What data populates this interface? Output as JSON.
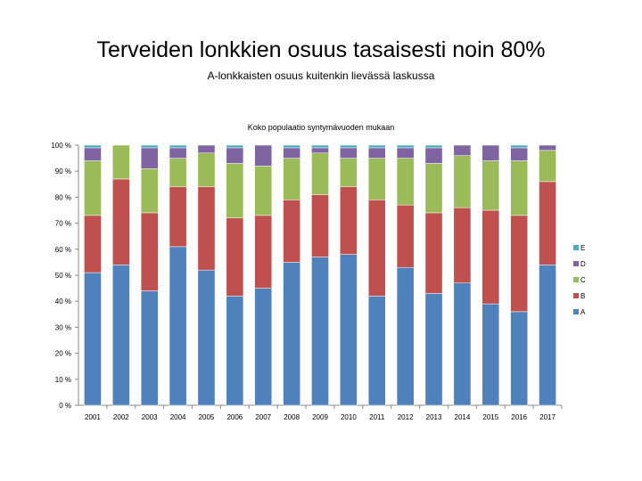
{
  "slide": {
    "title": "Terveiden lonkkien osuus tasaisesti noin 80%",
    "subtitle": "A-lonkkaisten osuus kuitenkin lievässä laskussa"
  },
  "chart_data": {
    "type": "bar",
    "stacked": true,
    "percent": true,
    "title": "Koko populaatio syntymävuoden mukaan",
    "xlabel": "",
    "ylabel": "",
    "ylim": [
      0,
      100
    ],
    "y_ticks": [
      "0 %",
      "10 %",
      "20 %",
      "30 %",
      "40 %",
      "50 %",
      "60 %",
      "70 %",
      "80 %",
      "90 %",
      "100 %"
    ],
    "categories": [
      "2001",
      "2002",
      "2003",
      "2004",
      "2005",
      "2006",
      "2007",
      "2008",
      "2009",
      "2010",
      "2011",
      "2012",
      "2013",
      "2014",
      "2015",
      "2016",
      "2017"
    ],
    "series": [
      {
        "name": "A",
        "color": "#4F81BD",
        "values": [
          51,
          54,
          44,
          61,
          52,
          42,
          45,
          55,
          57,
          58,
          42,
          53,
          43,
          47,
          39,
          36,
          54
        ]
      },
      {
        "name": "B",
        "color": "#C0504D",
        "values": [
          22,
          33,
          30,
          23,
          32,
          30,
          28,
          24,
          24,
          26,
          37,
          24,
          31,
          29,
          36,
          37,
          32
        ]
      },
      {
        "name": "C",
        "color": "#9BBB59",
        "values": [
          21,
          13,
          17,
          11,
          13,
          21,
          19,
          16,
          16,
          11,
          16,
          18,
          19,
          20,
          19,
          21,
          12
        ]
      },
      {
        "name": "D",
        "color": "#8064A2",
        "values": [
          5,
          0,
          8,
          4,
          3,
          6,
          8,
          4,
          2,
          4,
          4,
          4,
          6,
          4,
          6,
          5,
          2
        ]
      },
      {
        "name": "E",
        "color": "#4BACC6",
        "values": [
          1,
          0,
          1,
          1,
          0,
          1,
          0,
          1,
          1,
          1,
          1,
          1,
          1,
          0,
          0,
          1,
          0
        ]
      }
    ],
    "legend_position": "right",
    "grid": false
  }
}
